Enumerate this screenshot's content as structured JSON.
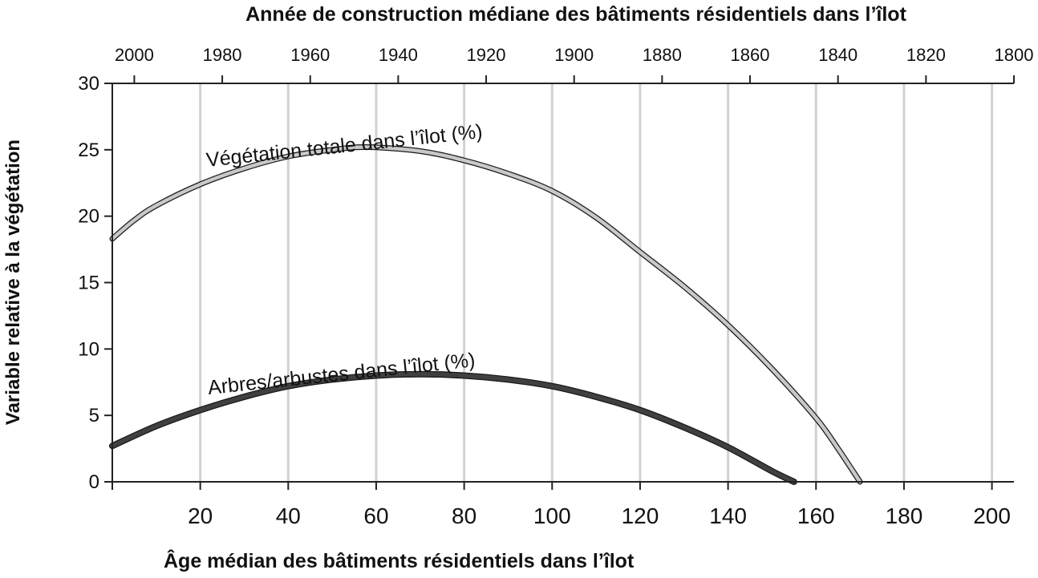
{
  "chart_data": {
    "type": "line",
    "top_axis_label": "Année de construction médiane des bâtiments résidentiels dans l’îlot",
    "top_ticks": [
      "2000",
      "1980",
      "1960",
      "1940",
      "1920",
      "1900",
      "1880",
      "1860",
      "1840",
      "1820",
      "1800"
    ],
    "xlabel": "Âge médian des bâtiments résidentiels dans l’îlot",
    "ylabel": "Variable relative à la végétation",
    "x_ticks": [
      20,
      40,
      60,
      80,
      100,
      120,
      140,
      160,
      180,
      200
    ],
    "y_ticks": [
      0,
      5,
      10,
      15,
      20,
      25,
      30
    ],
    "xlim": [
      0,
      205
    ],
    "ylim": [
      0,
      30
    ],
    "grid": "vertical",
    "series": [
      {
        "name": "Végétation totale dans l’îlot (%)",
        "color": "#c8c8c8",
        "x": [
          0,
          5,
          10,
          20,
          30,
          40,
          50,
          58,
          70,
          80,
          90,
          100,
          110,
          120,
          130,
          140,
          150,
          160,
          165,
          170
        ],
        "y": [
          18.3,
          19.7,
          20.8,
          22.4,
          23.6,
          24.5,
          25.0,
          25.2,
          24.9,
          24.2,
          23.2,
          21.9,
          19.9,
          17.3,
          14.7,
          11.8,
          8.5,
          4.8,
          2.5,
          0.0
        ]
      },
      {
        "name": "Arbres/arbustes dans l’îlot (%)",
        "color": "#404040",
        "x": [
          0,
          10,
          20,
          30,
          40,
          50,
          60,
          70,
          80,
          90,
          100,
          110,
          120,
          130,
          140,
          150,
          155
        ],
        "y": [
          2.7,
          4.2,
          5.4,
          6.4,
          7.2,
          7.7,
          8.0,
          8.1,
          8.0,
          7.7,
          7.2,
          6.4,
          5.4,
          4.1,
          2.6,
          0.8,
          0.0
        ]
      }
    ]
  }
}
